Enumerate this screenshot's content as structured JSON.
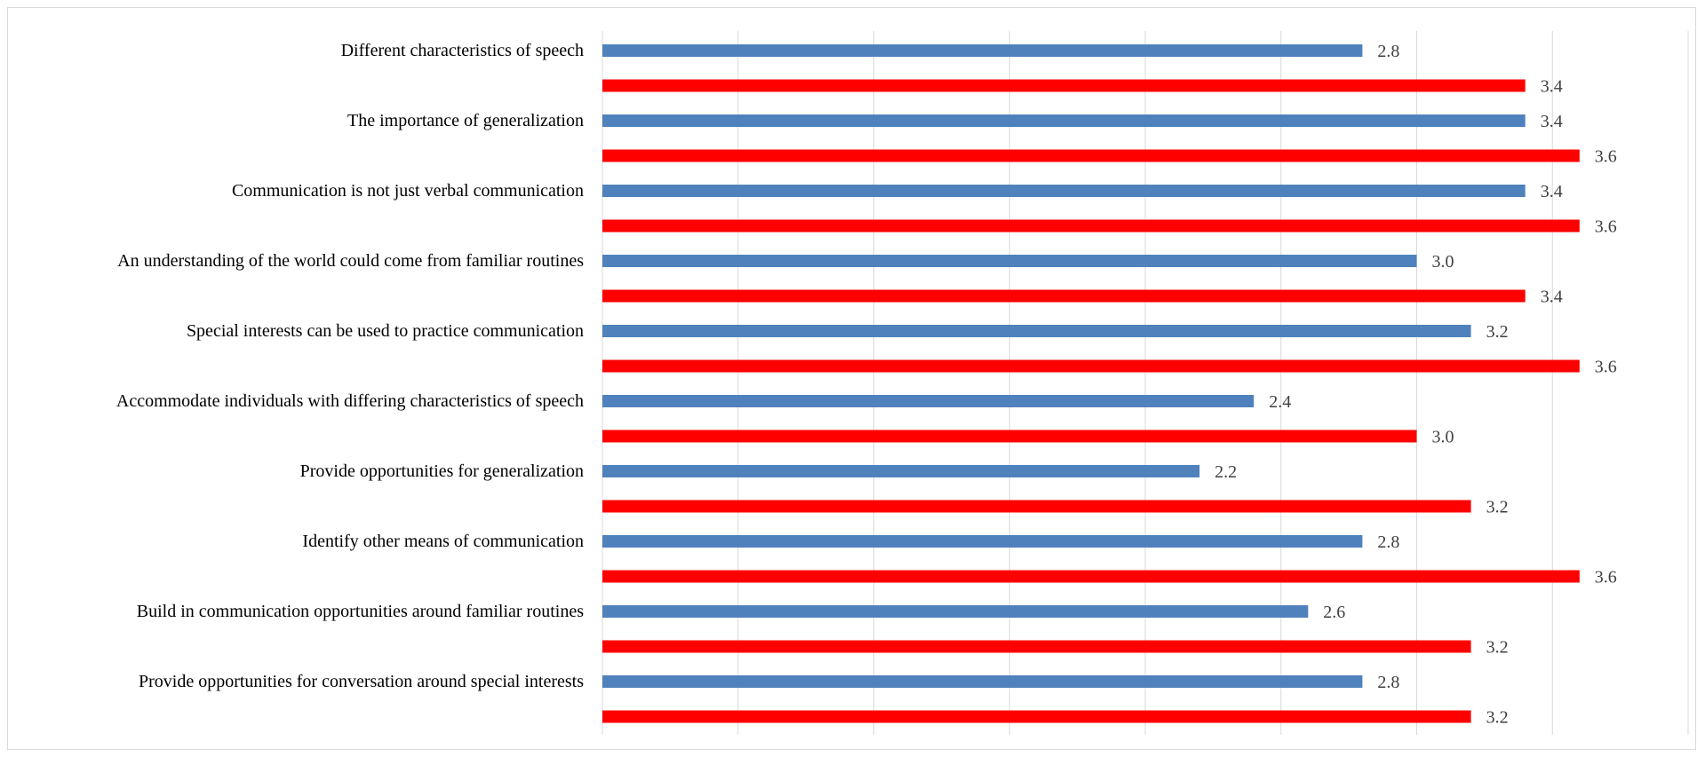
{
  "chart_data": {
    "type": "bar",
    "orientation": "horizontal",
    "categories": [
      "Different characteristics of speech",
      "The importance of generalization",
      "Communication is not just verbal communication",
      "An understanding of the world could come from familiar routines",
      "Special interests can be used to practice communication",
      "Accommodate individuals with differing characteristics of speech",
      "Provide opportunities for generalization",
      "Identify other means of communication",
      "Build in communication opportunities around familiar routines",
      "Provide opportunities for conversation around special interests"
    ],
    "series": [
      {
        "color": "#4f81bd",
        "values": [
          2.8,
          3.4,
          3.4,
          3.0,
          3.2,
          2.4,
          2.2,
          2.8,
          2.6,
          2.8
        ],
        "labels": [
          "2.8",
          "3.4",
          "3.4",
          "3.0",
          "3.2",
          "2.4",
          "2.2",
          "2.8",
          "2.6",
          "2.8"
        ]
      },
      {
        "color": "#ff0000",
        "values": [
          3.4,
          3.6,
          3.6,
          3.4,
          3.6,
          3.0,
          3.2,
          3.6,
          3.2,
          3.2
        ],
        "labels": [
          "3.4",
          "3.6",
          "3.6",
          "3.4",
          "3.6",
          "3.0",
          "3.2",
          "3.6",
          "3.2",
          "3.2"
        ]
      }
    ],
    "xlim": [
      0,
      4.0
    ],
    "grid": true,
    "title": "",
    "xlabel": "",
    "ylabel": ""
  }
}
